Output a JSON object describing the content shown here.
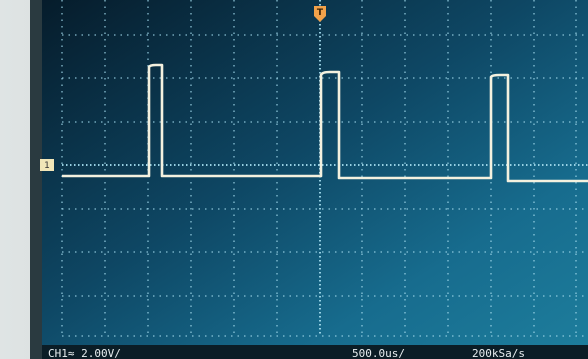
{
  "status_bar": {
    "channel": "CH1≈ 2.00V/",
    "timebase": "500.0us/",
    "sample_rate": "200kSa/s"
  },
  "markers": {
    "trigger": "T",
    "ground": "1"
  }
}
